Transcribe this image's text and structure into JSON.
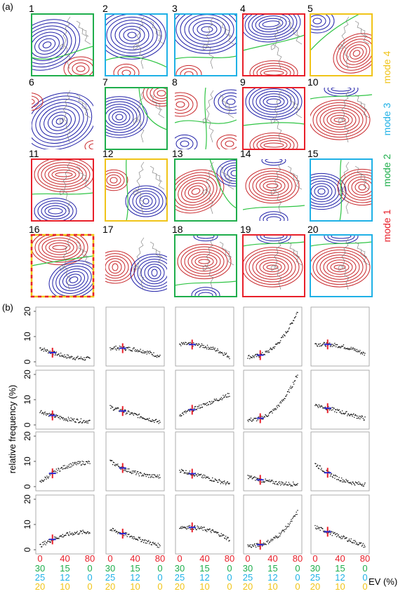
{
  "panel_a": {
    "label": "(a)",
    "maps": [
      {
        "n": "1",
        "frame": "green",
        "pattern": "sw_low_high"
      },
      {
        "n": "2",
        "frame": "cyan",
        "pattern": "low_center"
      },
      {
        "n": "3",
        "frame": "cyan",
        "pattern": "low_top_wide"
      },
      {
        "n": "4",
        "frame": "red",
        "pattern": "zonal_low_top"
      },
      {
        "n": "5",
        "frame": "yellow",
        "pattern": "high_right"
      },
      {
        "n": "6",
        "frame": "none",
        "pattern": "low_center_big"
      },
      {
        "n": "7",
        "frame": "green",
        "pattern": "low_left"
      },
      {
        "n": "8",
        "frame": "none",
        "pattern": "quad"
      },
      {
        "n": "9",
        "frame": "red",
        "pattern": "low_top_red_bottom"
      },
      {
        "n": "10",
        "frame": "none",
        "pattern": "high_center_red"
      },
      {
        "n": "11",
        "frame": "red",
        "pattern": "high_top_low_bottom"
      },
      {
        "n": "12",
        "frame": "yellow",
        "pattern": "low_right_small"
      },
      {
        "n": "13",
        "frame": "green",
        "pattern": "high_left_low_right"
      },
      {
        "n": "14",
        "frame": "none",
        "pattern": "high_center_low_bottom"
      },
      {
        "n": "15",
        "frame": "cyan",
        "pattern": "low_left_high_right"
      },
      {
        "n": "16",
        "frame": "dashed",
        "pattern": "high_top_low_bottomright"
      },
      {
        "n": "17",
        "frame": "none",
        "pattern": "red_left_blue_right"
      },
      {
        "n": "18",
        "frame": "green",
        "pattern": "high_center_low_bottom"
      },
      {
        "n": "19",
        "frame": "red",
        "pattern": "high_center_red"
      },
      {
        "n": "20",
        "frame": "cyan",
        "pattern": "high_center_red"
      }
    ],
    "mode_legend": [
      {
        "text": "mode 1",
        "color": "#e8202a"
      },
      {
        "text": "mode 2",
        "color": "#1fae4c"
      },
      {
        "text": "mode 3",
        "color": "#1fb1e6"
      },
      {
        "text": "mode 4",
        "color": "#f0c419"
      }
    ]
  },
  "panel_b": {
    "label": "(b)",
    "ylabel": "relative frequency (%)",
    "yticks": [
      "20",
      "10",
      "0"
    ],
    "xticks": [
      "0",
      "40",
      "80"
    ],
    "ev_label": "EV (%)",
    "ev_rows": [
      {
        "color": "#1fae4c",
        "values": [
          "30",
          "15",
          "0"
        ]
      },
      {
        "color": "#1fb1e6",
        "values": [
          "25",
          "12",
          "0"
        ]
      },
      {
        "color": "#f0c419",
        "values": [
          "20",
          "10",
          "0"
        ]
      }
    ]
  },
  "chart_data": {
    "type": "scatter",
    "xlim": [
      0,
      80
    ],
    "ylim": [
      0,
      20
    ],
    "xlabel": "EV (%)",
    "ylabel": "relative frequency (%)",
    "panels": [
      {
        "n": 1,
        "start": 5.5,
        "end": 1.2,
        "curve": "decay"
      },
      {
        "n": 2,
        "start": 5.5,
        "end": 2.0,
        "curve": "flat"
      },
      {
        "n": 3,
        "start": 7.0,
        "end": 2.0,
        "curve": "flat"
      },
      {
        "n": 4,
        "start": 2.0,
        "end": 20.0,
        "curve": "growth"
      },
      {
        "n": 5,
        "start": 7.0,
        "end": 3.0,
        "curve": "flat"
      },
      {
        "n": 6,
        "start": 5.5,
        "end": 1.5,
        "curve": "decay"
      },
      {
        "n": 7,
        "start": 7.0,
        "end": 1.0,
        "curve": "linear"
      },
      {
        "n": 8,
        "start": 4.0,
        "end": 12.0,
        "curve": "linear"
      },
      {
        "n": 9,
        "start": 2.0,
        "end": 20.0,
        "curve": "growth"
      },
      {
        "n": 10,
        "start": 8.0,
        "end": 2.5,
        "curve": "linear"
      },
      {
        "n": 11,
        "start": 1.5,
        "end": 9.5,
        "curve": "sat"
      },
      {
        "n": 12,
        "start": 10.0,
        "end": 4.0,
        "curve": "decay"
      },
      {
        "n": 13,
        "start": 6.5,
        "end": 1.0,
        "curve": "linear"
      },
      {
        "n": 14,
        "start": 4.0,
        "end": 1.0,
        "curve": "decay"
      },
      {
        "n": 15,
        "start": 9.0,
        "end": 1.0,
        "curve": "decay"
      },
      {
        "n": 16,
        "start": 1.5,
        "end": 7.0,
        "curve": "sat"
      },
      {
        "n": 17,
        "start": 8.0,
        "end": 1.5,
        "curve": "linear"
      },
      {
        "n": 18,
        "start": 9.0,
        "end": 4.0,
        "curve": "flat"
      },
      {
        "n": 19,
        "start": 1.5,
        "end": 15.0,
        "curve": "growth"
      },
      {
        "n": 20,
        "start": 9.0,
        "end": 1.5,
        "curve": "linear"
      }
    ]
  },
  "colors": {
    "red": "#e8202a",
    "green": "#1fae4c",
    "cyan": "#1fb1e6",
    "yellow": "#f0c419",
    "blue_contour": "#1f1fa8",
    "red_contour": "#c8262a",
    "green_contour": "#2ec443"
  }
}
